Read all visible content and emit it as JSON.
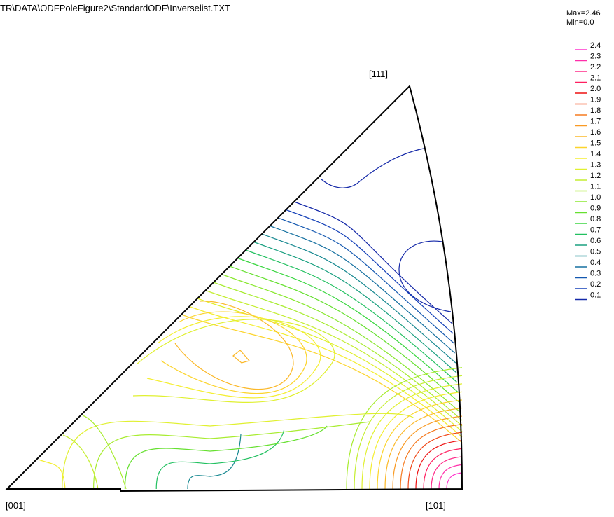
{
  "header": {
    "path": "TR\\DATA\\ODFPoleFigure2\\StandardODF\\Inverselist.TXT",
    "max": "Max=2.46",
    "min": "Min=0.0"
  },
  "corners": {
    "top": "[111]",
    "left": "[001]",
    "right": "[101]"
  },
  "legend": {
    "levels": [
      {
        "label": "2.4",
        "color": "#ff33cc"
      },
      {
        "label": "2.3",
        "color": "#ff2faa"
      },
      {
        "label": "2.2",
        "color": "#ff2a88"
      },
      {
        "label": "2.1",
        "color": "#ff2060"
      },
      {
        "label": "2.0",
        "color": "#ee1111"
      },
      {
        "label": "1.9",
        "color": "#f04a1a"
      },
      {
        "label": "1.8",
        "color": "#f57a20"
      },
      {
        "label": "1.7",
        "color": "#f99a24"
      },
      {
        "label": "1.6",
        "color": "#fbb828"
      },
      {
        "label": "1.5",
        "color": "#fcd42c"
      },
      {
        "label": "1.4",
        "color": "#f4ee30"
      },
      {
        "label": "1.3",
        "color": "#e0f030"
      },
      {
        "label": "1.2",
        "color": "#c4ee30"
      },
      {
        "label": "1.1",
        "color": "#a8ec30"
      },
      {
        "label": "1.0",
        "color": "#8ae830"
      },
      {
        "label": "0.9",
        "color": "#66e030"
      },
      {
        "label": "0.8",
        "color": "#3ad640"
      },
      {
        "label": "0.7",
        "color": "#22c060"
      },
      {
        "label": "0.6",
        "color": "#1aa080"
      },
      {
        "label": "0.5",
        "color": "#168890"
      },
      {
        "label": "0.4",
        "color": "#1570a0"
      },
      {
        "label": "0.3",
        "color": "#1458b0"
      },
      {
        "label": "0.2",
        "color": "#1440b8"
      },
      {
        "label": "0.1",
        "color": "#1428a8"
      }
    ]
  }
}
